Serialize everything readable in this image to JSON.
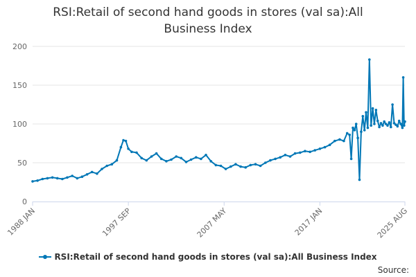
{
  "chart_data": {
    "type": "line",
    "title": "RSI:Retail of second hand goods in stores (val sa):All Business Index",
    "xlabel": "",
    "ylabel": "",
    "ylim": [
      0,
      200
    ],
    "yticks": [
      0,
      50,
      100,
      150,
      200
    ],
    "x_ticks": [
      "1988 JAN",
      "1997 SEP",
      "2007 MAY",
      "2017 JAN",
      "2025 AUG"
    ],
    "x_range": [
      "1988-01",
      "2025-08"
    ],
    "grid": true,
    "legend": "bottom",
    "series": [
      {
        "name": "RSI:Retail of second hand goods in stores (val sa):All Business Index",
        "color": "#0077b6",
        "points": [
          [
            "1988-01",
            26
          ],
          [
            "1988-07",
            27
          ],
          [
            "1989-01",
            29
          ],
          [
            "1989-07",
            30
          ],
          [
            "1990-01",
            31
          ],
          [
            "1990-07",
            30
          ],
          [
            "1991-01",
            29
          ],
          [
            "1991-07",
            31
          ],
          [
            "1992-01",
            33
          ],
          [
            "1992-07",
            30
          ],
          [
            "1993-01",
            32
          ],
          [
            "1993-07",
            35
          ],
          [
            "1994-01",
            38
          ],
          [
            "1994-07",
            36
          ],
          [
            "1995-01",
            42
          ],
          [
            "1995-07",
            46
          ],
          [
            "1996-01",
            48
          ],
          [
            "1996-07",
            53
          ],
          [
            "1996-12",
            70
          ],
          [
            "1997-03",
            79
          ],
          [
            "1997-06",
            78
          ],
          [
            "1997-09",
            68
          ],
          [
            "1998-01",
            64
          ],
          [
            "1998-07",
            63
          ],
          [
            "1999-01",
            56
          ],
          [
            "1999-07",
            53
          ],
          [
            "2000-01",
            58
          ],
          [
            "2000-07",
            62
          ],
          [
            "2001-01",
            55
          ],
          [
            "2001-07",
            52
          ],
          [
            "2002-01",
            54
          ],
          [
            "2002-07",
            58
          ],
          [
            "2003-01",
            56
          ],
          [
            "2003-07",
            51
          ],
          [
            "2004-01",
            54
          ],
          [
            "2004-07",
            57
          ],
          [
            "2005-01",
            55
          ],
          [
            "2005-07",
            60
          ],
          [
            "2006-01",
            52
          ],
          [
            "2006-07",
            47
          ],
          [
            "2007-01",
            46
          ],
          [
            "2007-07",
            42
          ],
          [
            "2008-01",
            45
          ],
          [
            "2008-07",
            48
          ],
          [
            "2009-01",
            45
          ],
          [
            "2009-07",
            44
          ],
          [
            "2010-01",
            47
          ],
          [
            "2010-07",
            48
          ],
          [
            "2011-01",
            46
          ],
          [
            "2011-07",
            50
          ],
          [
            "2012-01",
            53
          ],
          [
            "2012-07",
            55
          ],
          [
            "2013-01",
            57
          ],
          [
            "2013-07",
            60
          ],
          [
            "2014-01",
            58
          ],
          [
            "2014-07",
            62
          ],
          [
            "2015-01",
            63
          ],
          [
            "2015-07",
            65
          ],
          [
            "2016-01",
            64
          ],
          [
            "2016-07",
            66
          ],
          [
            "2017-01",
            68
          ],
          [
            "2017-07",
            70
          ],
          [
            "2018-01",
            73
          ],
          [
            "2018-07",
            78
          ],
          [
            "2019-01",
            80
          ],
          [
            "2019-06",
            78
          ],
          [
            "2019-10",
            88
          ],
          [
            "2020-01",
            86
          ],
          [
            "2020-03",
            55
          ],
          [
            "2020-05",
            95
          ],
          [
            "2020-07",
            92
          ],
          [
            "2020-09",
            100
          ],
          [
            "2020-11",
            82
          ],
          [
            "2021-01",
            28
          ],
          [
            "2021-03",
            90
          ],
          [
            "2021-05",
            110
          ],
          [
            "2021-07",
            92
          ],
          [
            "2021-09",
            115
          ],
          [
            "2021-11",
            95
          ],
          [
            "2022-01",
            183
          ],
          [
            "2022-03",
            98
          ],
          [
            "2022-05",
            120
          ],
          [
            "2022-07",
            100
          ],
          [
            "2022-09",
            118
          ],
          [
            "2022-11",
            104
          ],
          [
            "2023-01",
            96
          ],
          [
            "2023-03",
            101
          ],
          [
            "2023-05",
            98
          ],
          [
            "2023-07",
            103
          ],
          [
            "2023-09",
            100
          ],
          [
            "2023-11",
            98
          ],
          [
            "2024-01",
            102
          ],
          [
            "2024-03",
            96
          ],
          [
            "2024-05",
            125
          ],
          [
            "2024-07",
            101
          ],
          [
            "2024-09",
            99
          ],
          [
            "2024-11",
            97
          ],
          [
            "2025-01",
            104
          ],
          [
            "2025-03",
            100
          ],
          [
            "2025-05",
            95
          ],
          [
            "2025-06",
            160
          ],
          [
            "2025-07",
            98
          ],
          [
            "2025-08",
            103
          ]
        ]
      }
    ]
  },
  "source_label": "Source:"
}
